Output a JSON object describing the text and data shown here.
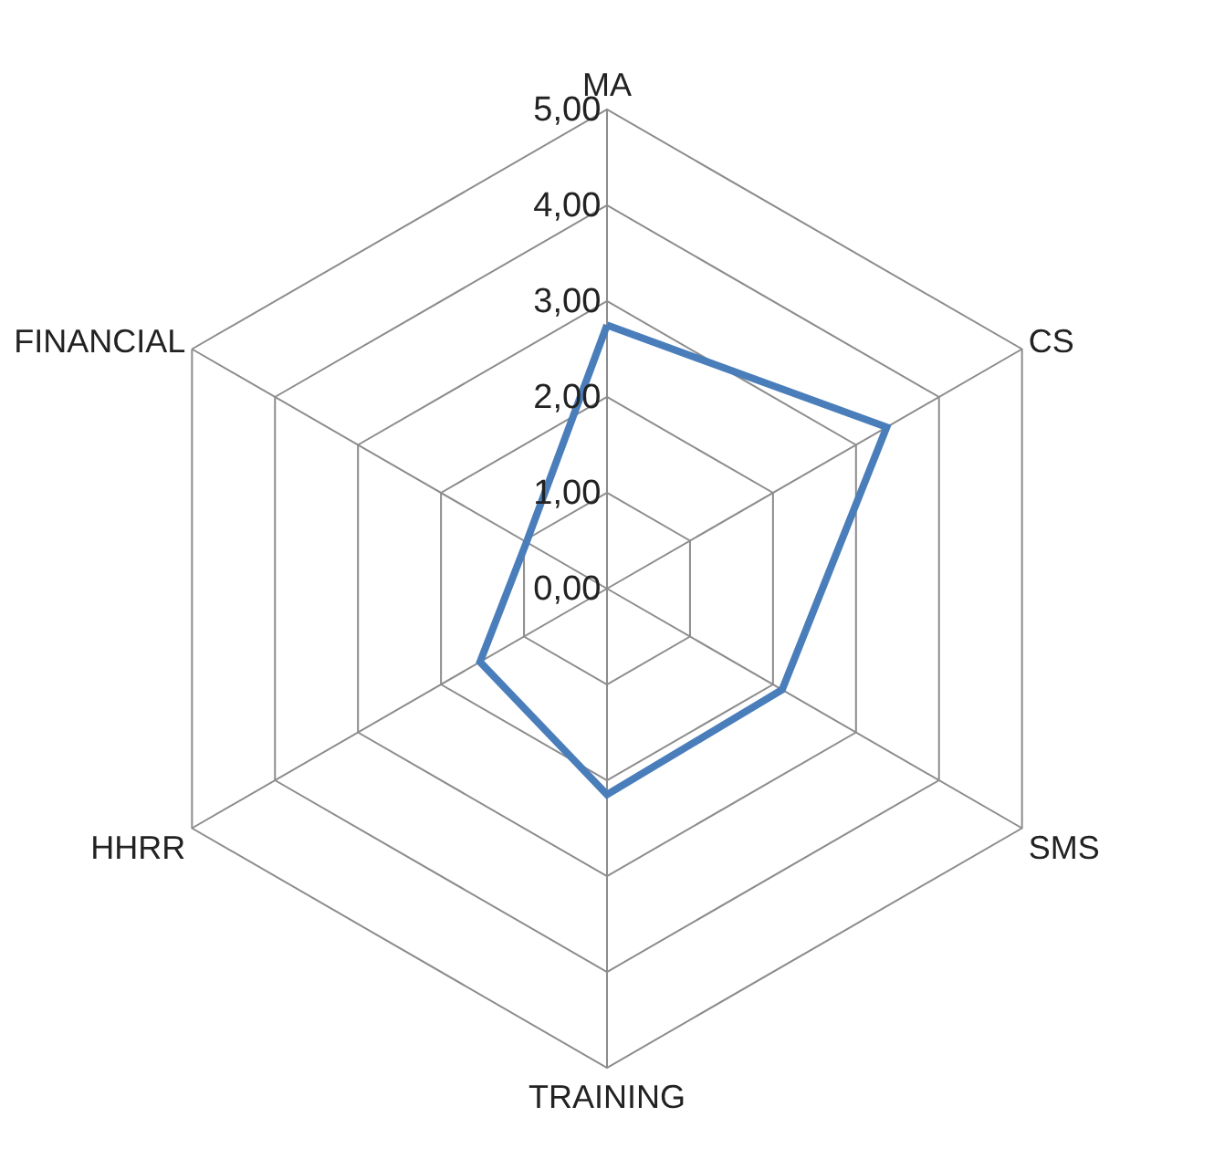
{
  "chart_data": {
    "type": "radar",
    "categories": [
      "MA",
      "CS",
      "SMS",
      "TRAINING",
      "HHRR",
      "FINANCIAL"
    ],
    "series": [
      {
        "color": "#4a7ebb",
        "values": [
          2.75,
          3.37,
          2.11,
          2.15,
          1.53,
          0.97
        ]
      }
    ],
    "ylim": [
      0,
      5
    ],
    "yticks": [
      {
        "value": 0,
        "label": "0,00"
      },
      {
        "value": 1,
        "label": "1,00"
      },
      {
        "value": 2,
        "label": "2,00"
      },
      {
        "value": 3,
        "label": "3,00"
      },
      {
        "value": 4,
        "label": "4,00"
      },
      {
        "value": 5,
        "label": "5,00"
      }
    ],
    "grid": true,
    "legend": false,
    "marker": "none",
    "line_style": "solid"
  }
}
